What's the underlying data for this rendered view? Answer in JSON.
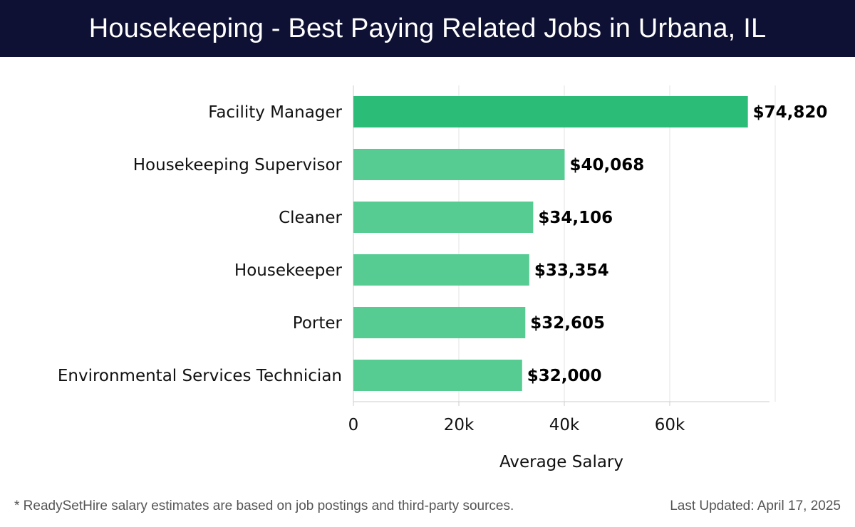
{
  "header": {
    "title": "Housekeeping - Best Paying Related Jobs in Urbana, IL"
  },
  "chart_data": {
    "type": "bar",
    "orientation": "horizontal",
    "categories": [
      "Facility Manager",
      "Housekeeping Supervisor",
      "Cleaner",
      "Housekeeper",
      "Porter",
      "Environmental Services Technician"
    ],
    "values": [
      74820,
      40068,
      34106,
      33354,
      32605,
      32000
    ],
    "value_labels": [
      "$74,820",
      "$40,068",
      "$34,106",
      "$33,354",
      "$32,605",
      "$32,000"
    ],
    "highlight_index": 0,
    "xlabel": "Average Salary",
    "ylabel": "",
    "xlim": [
      0,
      78000
    ],
    "xticks": [
      0,
      20000,
      40000,
      60000
    ],
    "xtick_labels": [
      "0",
      "20k",
      "40k",
      "60k"
    ],
    "grid": true,
    "colors": {
      "highlight": "#2bbd77",
      "bar": "#56cc93",
      "grid": "#e3e3e3",
      "axis": "#cccccc"
    }
  },
  "footer": {
    "note": "* ReadySetHire salary estimates are based on job postings and third-party sources.",
    "updated": "Last Updated: April 17, 2025"
  }
}
